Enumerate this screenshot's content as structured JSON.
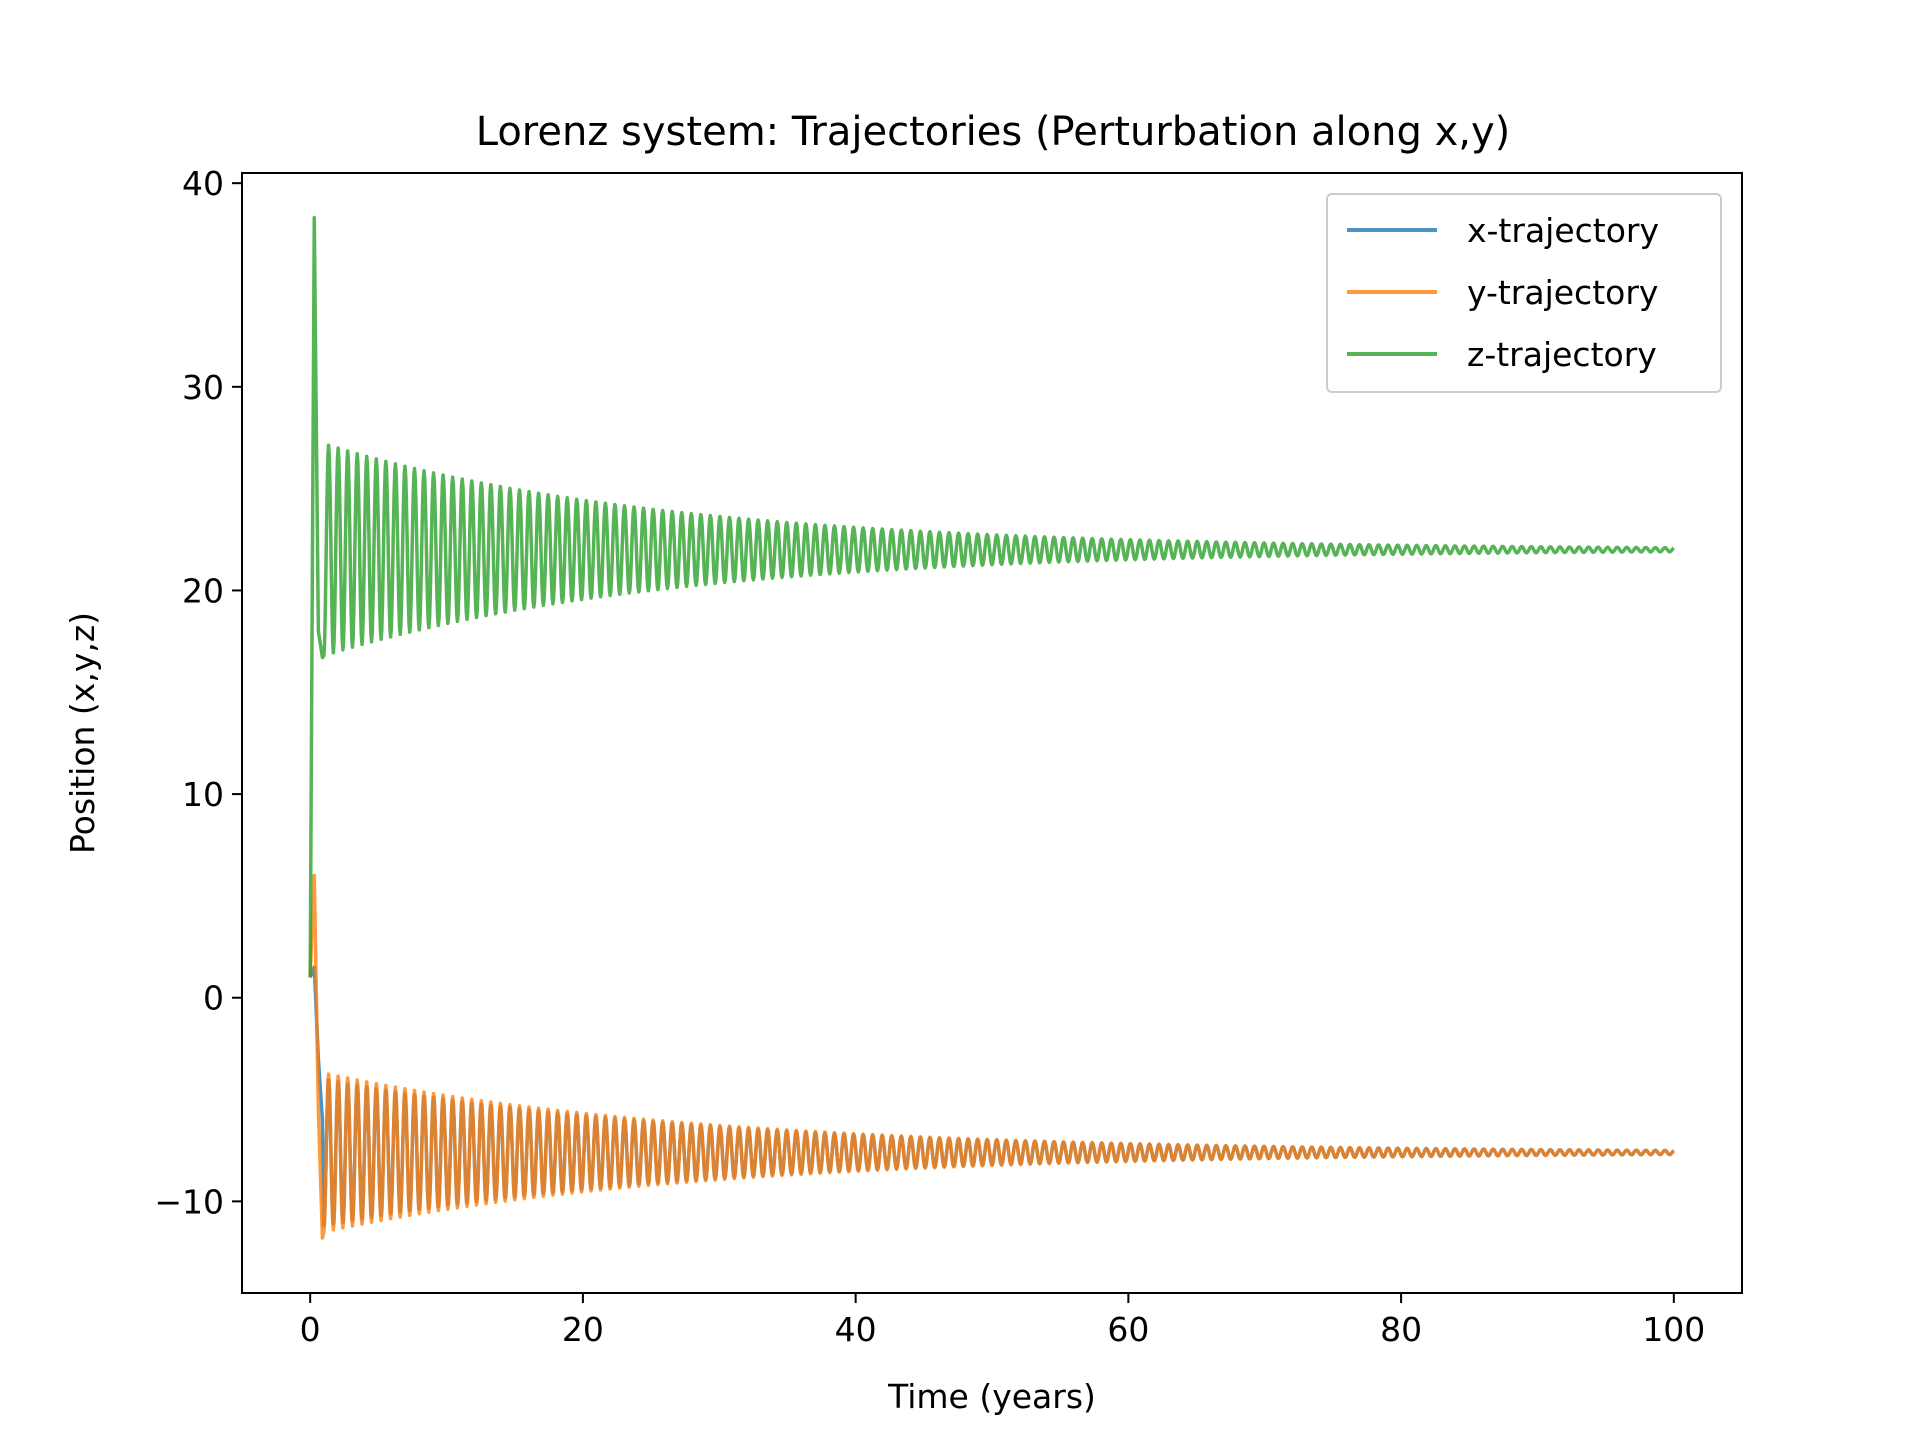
{
  "chart_data": {
    "type": "line",
    "title": "Lorenz system: Trajectories (Perturbation along x,y)",
    "xlabel": "Time (years)",
    "ylabel": "Position (x,y,z)",
    "xlim": [
      -5,
      105
    ],
    "ylim": [
      -14.5,
      40.5
    ],
    "xticks": [
      0,
      20,
      40,
      60,
      80,
      100
    ],
    "xtick_labels": [
      "0",
      "20",
      "40",
      "60",
      "80",
      "100"
    ],
    "yticks": [
      -10,
      0,
      10,
      20,
      30,
      40
    ],
    "ytick_labels": [
      "−10",
      "0",
      "10",
      "20",
      "30",
      "40"
    ],
    "grid": false,
    "legend_position": "top-right",
    "series": [
      {
        "name": "x-trajectory",
        "color": "#1f77b4",
        "initial": [
          [
            0,
            1
          ],
          [
            0.3,
            1.5
          ],
          [
            0.6,
            -3
          ],
          [
            0.9,
            -6
          ]
        ],
        "oscillation": {
          "center": -7.6,
          "amplitude_start": 3.6,
          "amplitude_end": 0.1,
          "decay_time": 20,
          "period": 0.7,
          "t_start": 1.0,
          "t_end": 100
        }
      },
      {
        "name": "y-trajectory",
        "color": "#ff7f0e",
        "initial": [
          [
            0,
            1
          ],
          [
            0.3,
            6
          ],
          [
            0.6,
            -5.5
          ],
          [
            0.9,
            -11.8
          ]
        ],
        "oscillation": {
          "center": -7.6,
          "amplitude_start": 3.9,
          "amplitude_end": 0.1,
          "decay_time": 20,
          "period": 0.7,
          "t_start": 1.0,
          "t_end": 100
        }
      },
      {
        "name": "z-trajectory",
        "color": "#2ca02c",
        "initial": [
          [
            0,
            1
          ],
          [
            0.3,
            38.3
          ],
          [
            0.6,
            18
          ],
          [
            0.9,
            16.7
          ]
        ],
        "oscillation": {
          "center": 22.0,
          "amplitude_start": 5.2,
          "amplitude_end": 0.1,
          "decay_time": 20,
          "period": 0.7,
          "t_start": 1.0,
          "t_end": 100
        }
      }
    ]
  }
}
